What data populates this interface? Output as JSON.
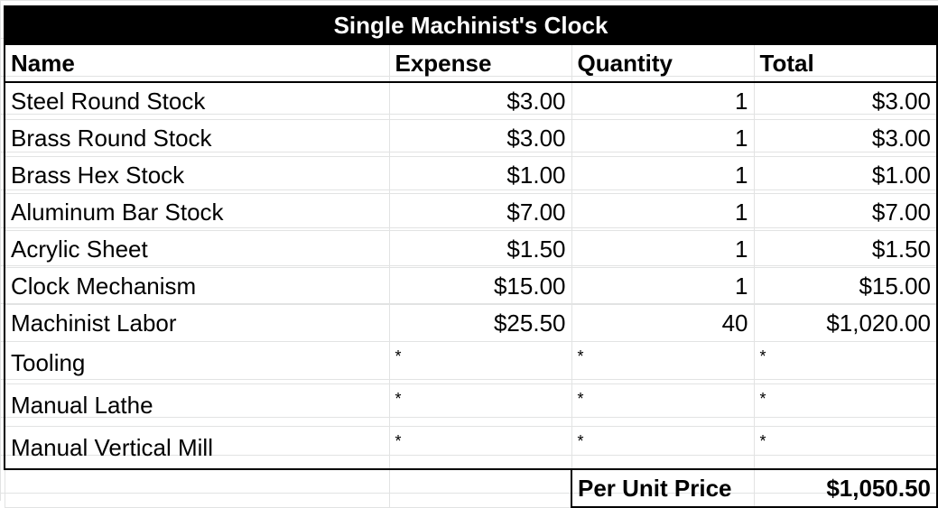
{
  "title": "Single Machinist's Clock",
  "headers": {
    "name": "Name",
    "expense": "Expense",
    "quantity": "Quantity",
    "total": "Total"
  },
  "rows": [
    {
      "name": "Steel Round Stock",
      "expense": "$3.00",
      "quantity": "1",
      "total": "$3.00"
    },
    {
      "name": "Brass Round Stock",
      "expense": "$3.00",
      "quantity": "1",
      "total": "$3.00"
    },
    {
      "name": "Brass Hex Stock",
      "expense": "$1.00",
      "quantity": "1",
      "total": "$1.00"
    },
    {
      "name": "Aluminum Bar Stock",
      "expense": "$7.00",
      "quantity": "1",
      "total": "$7.00"
    },
    {
      "name": "Acrylic Sheet",
      "expense": "$1.50",
      "quantity": "1",
      "total": "$1.50"
    },
    {
      "name": "Clock Mechanism",
      "expense": "$15.00",
      "quantity": "1",
      "total": "$15.00"
    },
    {
      "name": "Machinist Labor",
      "expense": "$25.50",
      "quantity": "40",
      "total": "$1,020.00"
    },
    {
      "name": "Tooling",
      "expense": "*",
      "quantity": "*",
      "total": "*"
    },
    {
      "name": "Manual Lathe",
      "expense": "*",
      "quantity": "*",
      "total": "*"
    },
    {
      "name": "Manual Vertical Mill",
      "expense": "*",
      "quantity": "*",
      "total": "*"
    }
  ],
  "summary": {
    "label": "Per Unit Price",
    "value": "$1,050.50"
  },
  "colors": {
    "title_bg": "#000000",
    "title_text": "#ffffff",
    "gridline": "#e2e3e3",
    "border": "#000000"
  }
}
